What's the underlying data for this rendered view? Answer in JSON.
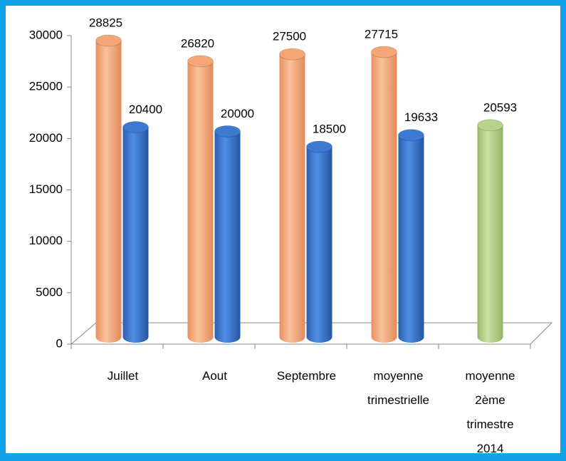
{
  "chart_data": {
    "type": "cylinder-bar",
    "categories": [
      "Juillet",
      "Aout",
      "Septembre",
      "moyenne trimestrielle",
      "moyenne 2ème trimestre 2014"
    ],
    "series": [
      {
        "color": "#f4a676",
        "values": [
          28825,
          26820,
          27500,
          27715,
          null
        ]
      },
      {
        "color": "#3c7ad2",
        "values": [
          20400,
          20000,
          18500,
          19633,
          null
        ]
      },
      {
        "color": "#b5d38a",
        "values": [
          null,
          null,
          null,
          null,
          20593
        ]
      }
    ],
    "ylim": [
      0,
      30000
    ],
    "yticks": [
      0,
      5000,
      10000,
      15000,
      20000,
      25000,
      30000
    ]
  }
}
